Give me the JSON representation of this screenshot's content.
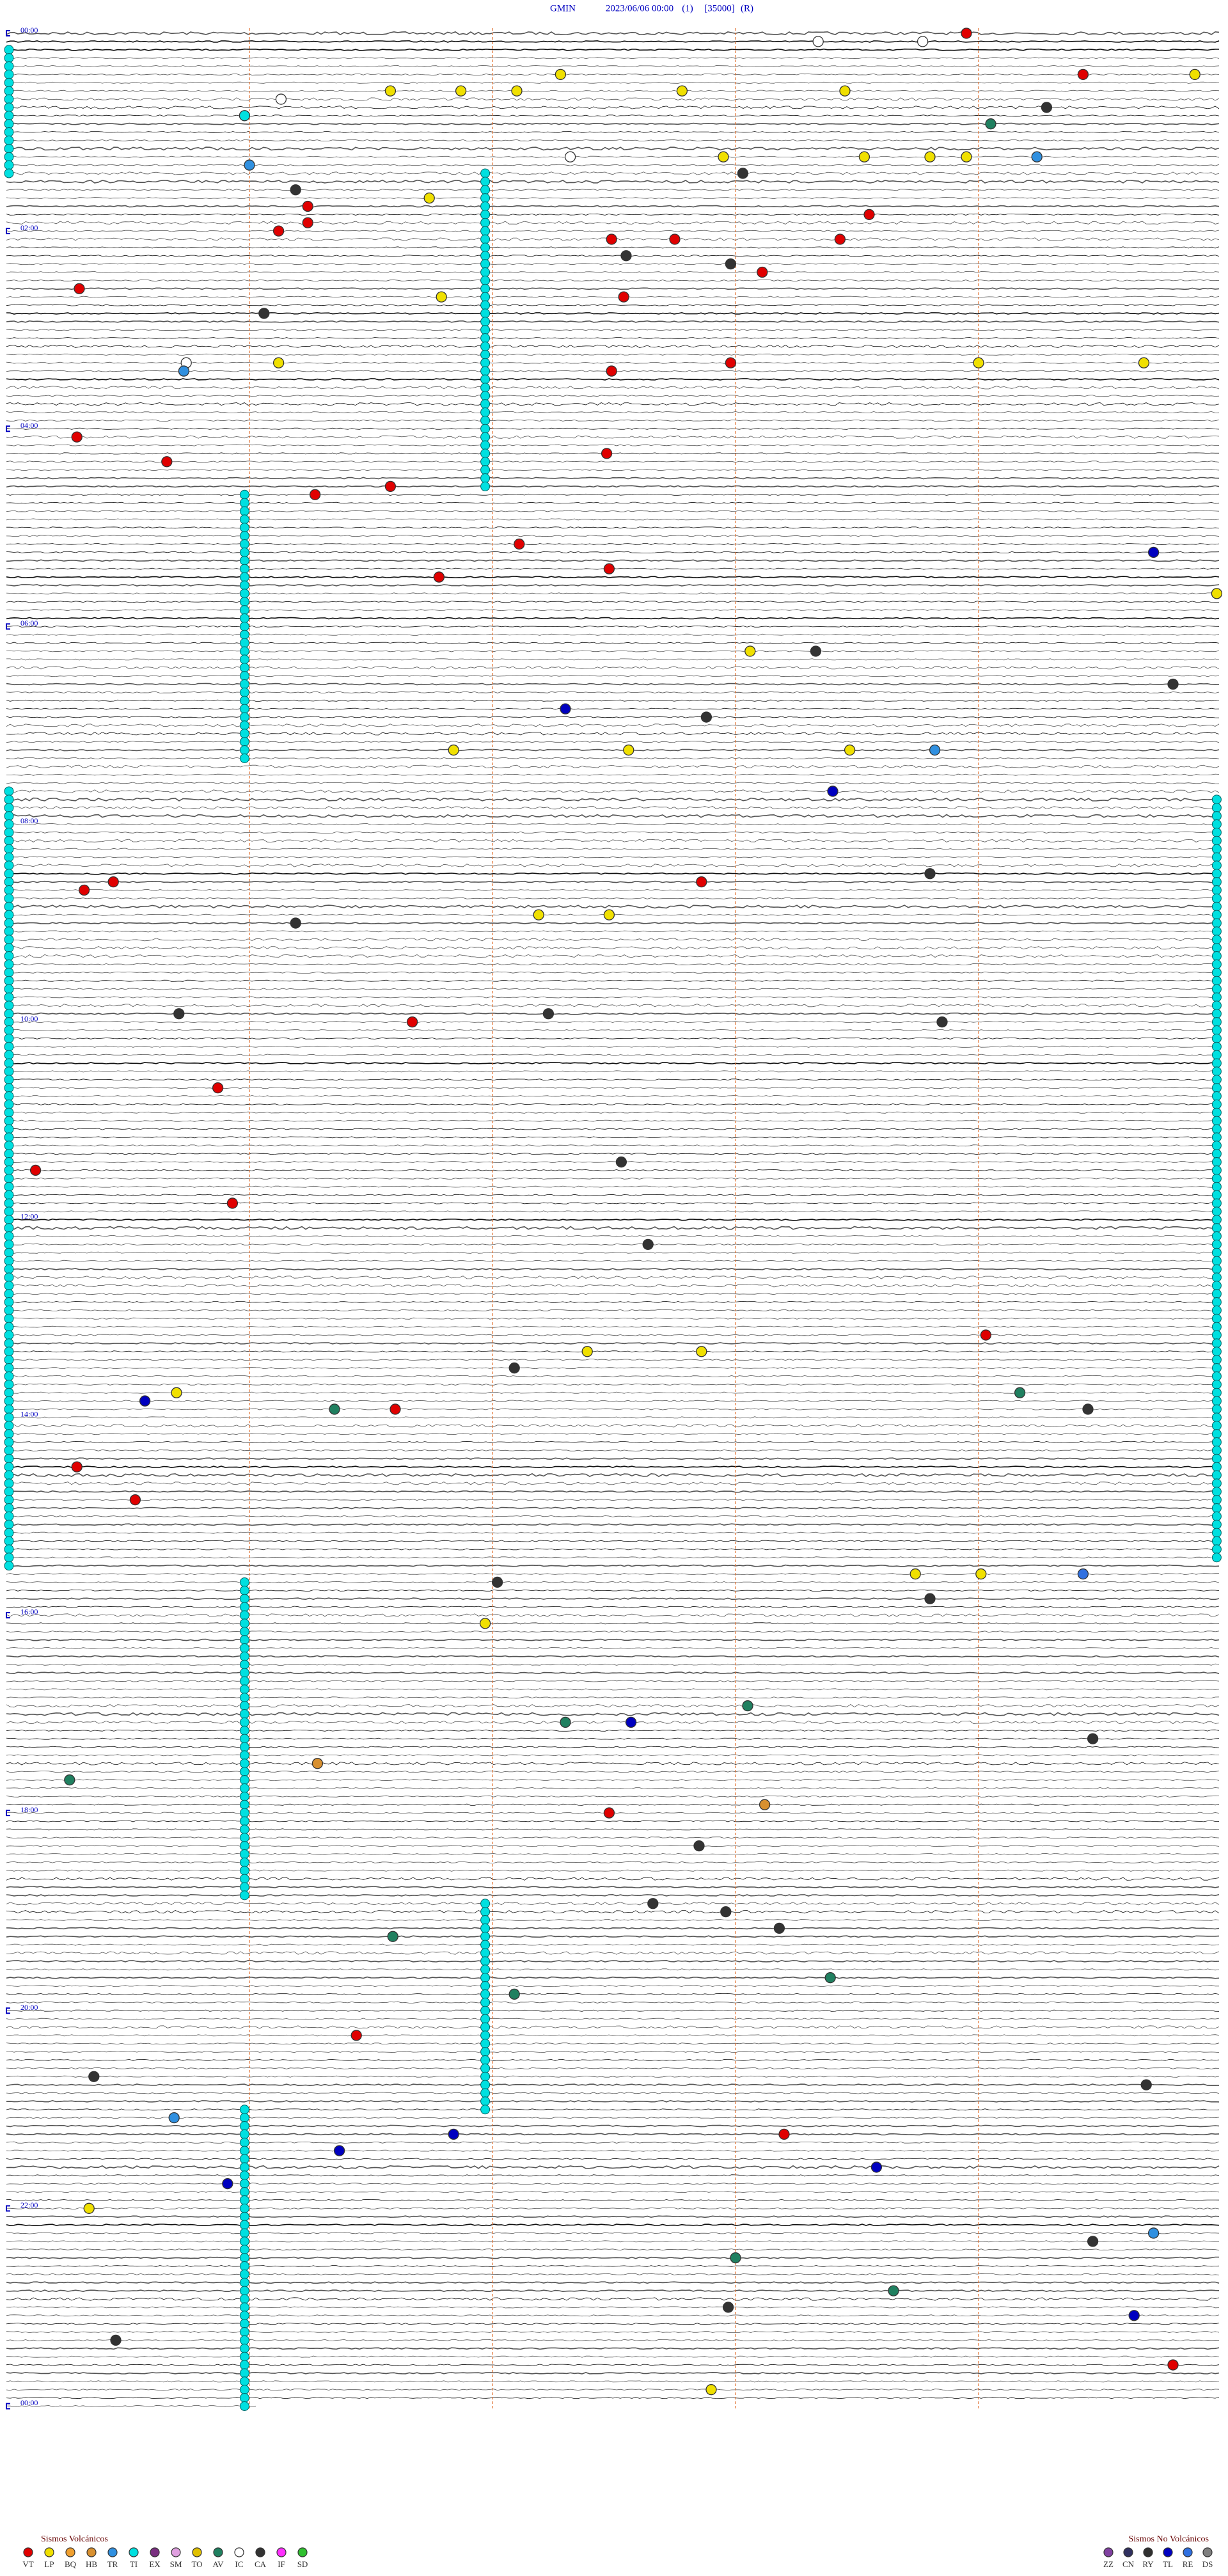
{
  "header": {
    "station": "GMIN",
    "datetime": "2023/06/06 00:00",
    "channel": "(1)",
    "scale": "[35000]",
    "mode": "(R)"
  },
  "rows_total": 288,
  "minutes_per_row": 5,
  "hour_labels": [
    {
      "row": 0,
      "label": "00:00"
    },
    {
      "row": 24,
      "label": "02:00"
    },
    {
      "row": 48,
      "label": "04:00"
    },
    {
      "row": 72,
      "label": "06:00"
    },
    {
      "row": 96,
      "label": "08:00"
    },
    {
      "row": 120,
      "label": "10:00"
    },
    {
      "row": 144,
      "label": "12:00"
    },
    {
      "row": 168,
      "label": "14:00"
    },
    {
      "row": 192,
      "label": "16:00"
    },
    {
      "row": 216,
      "label": "18:00"
    },
    {
      "row": 240,
      "label": "20:00"
    },
    {
      "row": 264,
      "label": "22:00"
    },
    {
      "row": 288,
      "label": "00:00"
    }
  ],
  "legend_volcanic": {
    "title": "Sismos Volcánicos",
    "items": [
      {
        "code": "VT",
        "color": "#e00000"
      },
      {
        "code": "LP",
        "color": "#f0e000"
      },
      {
        "code": "BQ",
        "color": "#f0a030"
      },
      {
        "code": "HB",
        "color": "#d89030"
      },
      {
        "code": "TR",
        "color": "#3090e0"
      },
      {
        "code": "TI",
        "color": "#00e0e0"
      },
      {
        "code": "EX",
        "color": "#7a3080"
      },
      {
        "code": "SM",
        "color": "#e0a0e0"
      },
      {
        "code": "TO",
        "color": "#e0c000"
      },
      {
        "code": "AV",
        "color": "#208060"
      },
      {
        "code": "IC",
        "color": "#ffffff"
      },
      {
        "code": "CA",
        "color": "#333333"
      },
      {
        "code": "IF",
        "color": "#ff30ff"
      },
      {
        "code": "SD",
        "color": "#30c030"
      }
    ]
  },
  "legend_nonvolcanic": {
    "title": "Sismos No Volcánicos",
    "items": [
      {
        "code": "ZZ",
        "color": "#8040a0"
      },
      {
        "code": "CN",
        "color": "#303060"
      },
      {
        "code": "RY",
        "color": "#303030"
      },
      {
        "code": "TL",
        "color": "#0000c0"
      },
      {
        "code": "RE",
        "color": "#3070e0"
      },
      {
        "code": "DS",
        "color": "#808080"
      }
    ]
  },
  "tremor_segments": [
    {
      "type": "TI",
      "t": 0.0,
      "rows": [
        2,
        17
      ]
    },
    {
      "type": "TI",
      "t": 0.0,
      "rows": [
        92,
        186
      ]
    },
    {
      "type": "TI",
      "t": 4.98,
      "rows": [
        93,
        185
      ]
    },
    {
      "type": "TI",
      "t": 0.98,
      "rows": [
        56,
        88
      ]
    },
    {
      "type": "TI",
      "t": 0.98,
      "rows": [
        188,
        226
      ]
    },
    {
      "type": "TI",
      "t": 0.98,
      "rows": [
        252,
        288
      ]
    },
    {
      "type": "TI",
      "t": 1.97,
      "rows": [
        17,
        55
      ]
    },
    {
      "type": "TI",
      "t": 1.97,
      "rows": [
        227,
        252
      ]
    }
  ],
  "events": [
    {
      "row": 0,
      "t": 3.95,
      "type": "VT"
    },
    {
      "row": 1,
      "t": 3.34,
      "type": "IC"
    },
    {
      "row": 1,
      "t": 3.77,
      "type": "IC"
    },
    {
      "row": 5,
      "t": 4.43,
      "type": "VT"
    },
    {
      "row": 5,
      "t": 2.28,
      "type": "LP"
    },
    {
      "row": 5,
      "t": 4.89,
      "type": "LP"
    },
    {
      "row": 7,
      "t": 1.58,
      "type": "LP"
    },
    {
      "row": 7,
      "t": 1.87,
      "type": "LP"
    },
    {
      "row": 7,
      "t": 2.1,
      "type": "LP"
    },
    {
      "row": 7,
      "t": 2.78,
      "type": "LP"
    },
    {
      "row": 7,
      "t": 3.45,
      "type": "LP"
    },
    {
      "row": 8,
      "t": 1.13,
      "type": "IC"
    },
    {
      "row": 9,
      "t": 4.28,
      "type": "CA"
    },
    {
      "row": 11,
      "t": 4.05,
      "type": "AV"
    },
    {
      "row": 10,
      "t": 0.98,
      "type": "TI"
    },
    {
      "row": 16,
      "t": 1.0,
      "type": "TR"
    },
    {
      "row": 15,
      "t": 2.32,
      "type": "IC"
    },
    {
      "row": 15,
      "t": 2.95,
      "type": "LP"
    },
    {
      "row": 15,
      "t": 3.53,
      "type": "LP"
    },
    {
      "row": 15,
      "t": 3.8,
      "type": "LP"
    },
    {
      "row": 15,
      "t": 3.95,
      "type": "LP"
    },
    {
      "row": 15,
      "t": 4.24,
      "type": "TR"
    },
    {
      "row": 17,
      "t": 3.03,
      "type": "CA"
    },
    {
      "row": 19,
      "t": 1.19,
      "type": "CA"
    },
    {
      "row": 20,
      "t": 1.74,
      "type": "LP"
    },
    {
      "row": 21,
      "t": 1.24,
      "type": "VT"
    },
    {
      "row": 23,
      "t": 1.24,
      "type": "VT"
    },
    {
      "row": 22,
      "t": 3.55,
      "type": "VT"
    },
    {
      "row": 24,
      "t": 1.12,
      "type": "VT"
    },
    {
      "row": 25,
      "t": 2.49,
      "type": "VT"
    },
    {
      "row": 25,
      "t": 2.75,
      "type": "VT"
    },
    {
      "row": 25,
      "t": 3.43,
      "type": "VT"
    },
    {
      "row": 27,
      "t": 2.55,
      "type": "CA"
    },
    {
      "row": 28,
      "t": 2.98,
      "type": "CA"
    },
    {
      "row": 29,
      "t": 3.11,
      "type": "VT"
    },
    {
      "row": 31,
      "t": 0.3,
      "type": "VT"
    },
    {
      "row": 32,
      "t": 1.79,
      "type": "LP"
    },
    {
      "row": 32,
      "t": 2.54,
      "type": "VT"
    },
    {
      "row": 34,
      "t": 1.06,
      "type": "CA"
    },
    {
      "row": 40,
      "t": 0.74,
      "type": "IC"
    },
    {
      "row": 40,
      "t": 1.12,
      "type": "LP"
    },
    {
      "row": 40,
      "t": 2.98,
      "type": "VT"
    },
    {
      "row": 40,
      "t": 4.0,
      "type": "LP"
    },
    {
      "row": 40,
      "t": 4.68,
      "type": "LP"
    },
    {
      "row": 41,
      "t": 0.73,
      "type": "TR"
    },
    {
      "row": 41,
      "t": 2.49,
      "type": "VT"
    },
    {
      "row": 49,
      "t": 0.29,
      "type": "VT"
    },
    {
      "row": 52,
      "t": 0.66,
      "type": "VT"
    },
    {
      "row": 51,
      "t": 2.47,
      "type": "VT"
    },
    {
      "row": 56,
      "t": 1.27,
      "type": "VT"
    },
    {
      "row": 55,
      "t": 1.58,
      "type": "VT"
    },
    {
      "row": 62,
      "t": 2.11,
      "type": "VT"
    },
    {
      "row": 65,
      "t": 2.48,
      "type": "VT"
    },
    {
      "row": 66,
      "t": 1.78,
      "type": "VT"
    },
    {
      "row": 63,
      "t": 4.72,
      "type": "TL"
    },
    {
      "row": 68,
      "t": 4.98,
      "type": "LP"
    },
    {
      "row": 75,
      "t": 3.06,
      "type": "LP"
    },
    {
      "row": 75,
      "t": 3.33,
      "type": "CA"
    },
    {
      "row": 82,
      "t": 2.3,
      "type": "TL"
    },
    {
      "row": 83,
      "t": 2.88,
      "type": "CA"
    },
    {
      "row": 79,
      "t": 4.8,
      "type": "CA"
    },
    {
      "row": 87,
      "t": 1.84,
      "type": "LP"
    },
    {
      "row": 87,
      "t": 2.56,
      "type": "LP"
    },
    {
      "row": 87,
      "t": 3.47,
      "type": "LP"
    },
    {
      "row": 87,
      "t": 3.82,
      "type": "TR"
    },
    {
      "row": 92,
      "t": 3.4,
      "type": "TL"
    },
    {
      "row": 104,
      "t": 0.32,
      "type": "VT"
    },
    {
      "row": 103,
      "t": 0.44,
      "type": "VT"
    },
    {
      "row": 103,
      "t": 2.86,
      "type": "VT"
    },
    {
      "row": 102,
      "t": 3.8,
      "type": "CA"
    },
    {
      "row": 108,
      "t": 1.19,
      "type": "CA"
    },
    {
      "row": 107,
      "t": 2.19,
      "type": "LP"
    },
    {
      "row": 107,
      "t": 2.48,
      "type": "LP"
    },
    {
      "row": 119,
      "t": 0.71,
      "type": "CA"
    },
    {
      "row": 120,
      "t": 1.67,
      "type": "VT"
    },
    {
      "row": 119,
      "t": 2.23,
      "type": "CA"
    },
    {
      "row": 120,
      "t": 3.85,
      "type": "CA"
    },
    {
      "row": 128,
      "t": 0.87,
      "type": "VT"
    },
    {
      "row": 138,
      "t": 0.12,
      "type": "VT"
    },
    {
      "row": 137,
      "t": 2.53,
      "type": "CA"
    },
    {
      "row": 142,
      "t": 0.93,
      "type": "VT"
    },
    {
      "row": 147,
      "t": 2.64,
      "type": "CA"
    },
    {
      "row": 158,
      "t": 4.03,
      "type": "VT"
    },
    {
      "row": 160,
      "t": 2.39,
      "type": "LP"
    },
    {
      "row": 160,
      "t": 2.86,
      "type": "LP"
    },
    {
      "row": 162,
      "t": 2.09,
      "type": "CA"
    },
    {
      "row": 166,
      "t": 0.57,
      "type": "TL"
    },
    {
      "row": 165,
      "t": 0.7,
      "type": "LP"
    },
    {
      "row": 167,
      "t": 1.35,
      "type": "AV"
    },
    {
      "row": 167,
      "t": 1.6,
      "type": "VT"
    },
    {
      "row": 165,
      "t": 4.17,
      "type": "AV"
    },
    {
      "row": 167,
      "t": 4.45,
      "type": "CA"
    },
    {
      "row": 174,
      "t": 0.29,
      "type": "VT"
    },
    {
      "row": 178,
      "t": 0.53,
      "type": "VT"
    },
    {
      "row": 187,
      "t": 3.74,
      "type": "LP"
    },
    {
      "row": 187,
      "t": 4.01,
      "type": "LP"
    },
    {
      "row": 187,
      "t": 4.43,
      "type": "RE"
    },
    {
      "row": 190,
      "t": 3.8,
      "type": "CA"
    },
    {
      "row": 188,
      "t": 2.02,
      "type": "CA"
    },
    {
      "row": 193,
      "t": 1.97,
      "type": "LP"
    },
    {
      "row": 203,
      "t": 3.05,
      "type": "AV"
    },
    {
      "row": 205,
      "t": 2.3,
      "type": "AV"
    },
    {
      "row": 205,
      "t": 2.57,
      "type": "TL"
    },
    {
      "row": 207,
      "t": 4.47,
      "type": "CA"
    },
    {
      "row": 212,
      "t": 0.26,
      "type": "AV"
    },
    {
      "row": 210,
      "t": 1.28,
      "type": "HB"
    },
    {
      "row": 216,
      "t": 2.48,
      "type": "VT"
    },
    {
      "row": 215,
      "t": 3.12,
      "type": "HB"
    },
    {
      "row": 220,
      "t": 2.85,
      "type": "CA"
    },
    {
      "row": 227,
      "t": 2.66,
      "type": "CA"
    },
    {
      "row": 228,
      "t": 2.96,
      "type": "CA"
    },
    {
      "row": 230,
      "t": 3.18,
      "type": "CA"
    },
    {
      "row": 231,
      "t": 1.59,
      "type": "AV"
    },
    {
      "row": 236,
      "t": 3.39,
      "type": "AV"
    },
    {
      "row": 238,
      "t": 2.09,
      "type": "AV"
    },
    {
      "row": 243,
      "t": 1.44,
      "type": "VT"
    },
    {
      "row": 248,
      "t": 0.36,
      "type": "CA"
    },
    {
      "row": 249,
      "t": 4.69,
      "type": "CA"
    },
    {
      "row": 253,
      "t": 0.69,
      "type": "TR"
    },
    {
      "row": 255,
      "t": 3.2,
      "type": "VT"
    },
    {
      "row": 257,
      "t": 1.37,
      "type": "TL"
    },
    {
      "row": 255,
      "t": 1.84,
      "type": "TL"
    },
    {
      "row": 259,
      "t": 3.58,
      "type": "TL"
    },
    {
      "row": 261,
      "t": 0.91,
      "type": "TL"
    },
    {
      "row": 264,
      "t": 0.34,
      "type": "LP"
    },
    {
      "row": 267,
      "t": 4.72,
      "type": "TR"
    },
    {
      "row": 268,
      "t": 4.47,
      "type": "CA"
    },
    {
      "row": 274,
      "t": 3.65,
      "type": "AV"
    },
    {
      "row": 270,
      "t": 3.0,
      "type": "AV"
    },
    {
      "row": 276,
      "t": 2.97,
      "type": "CA"
    },
    {
      "row": 277,
      "t": 4.64,
      "type": "TL"
    },
    {
      "row": 280,
      "t": 0.45,
      "type": "CA"
    },
    {
      "row": 283,
      "t": 4.8,
      "type": "VT"
    },
    {
      "row": 286,
      "t": 2.9,
      "type": "LP"
    }
  ]
}
